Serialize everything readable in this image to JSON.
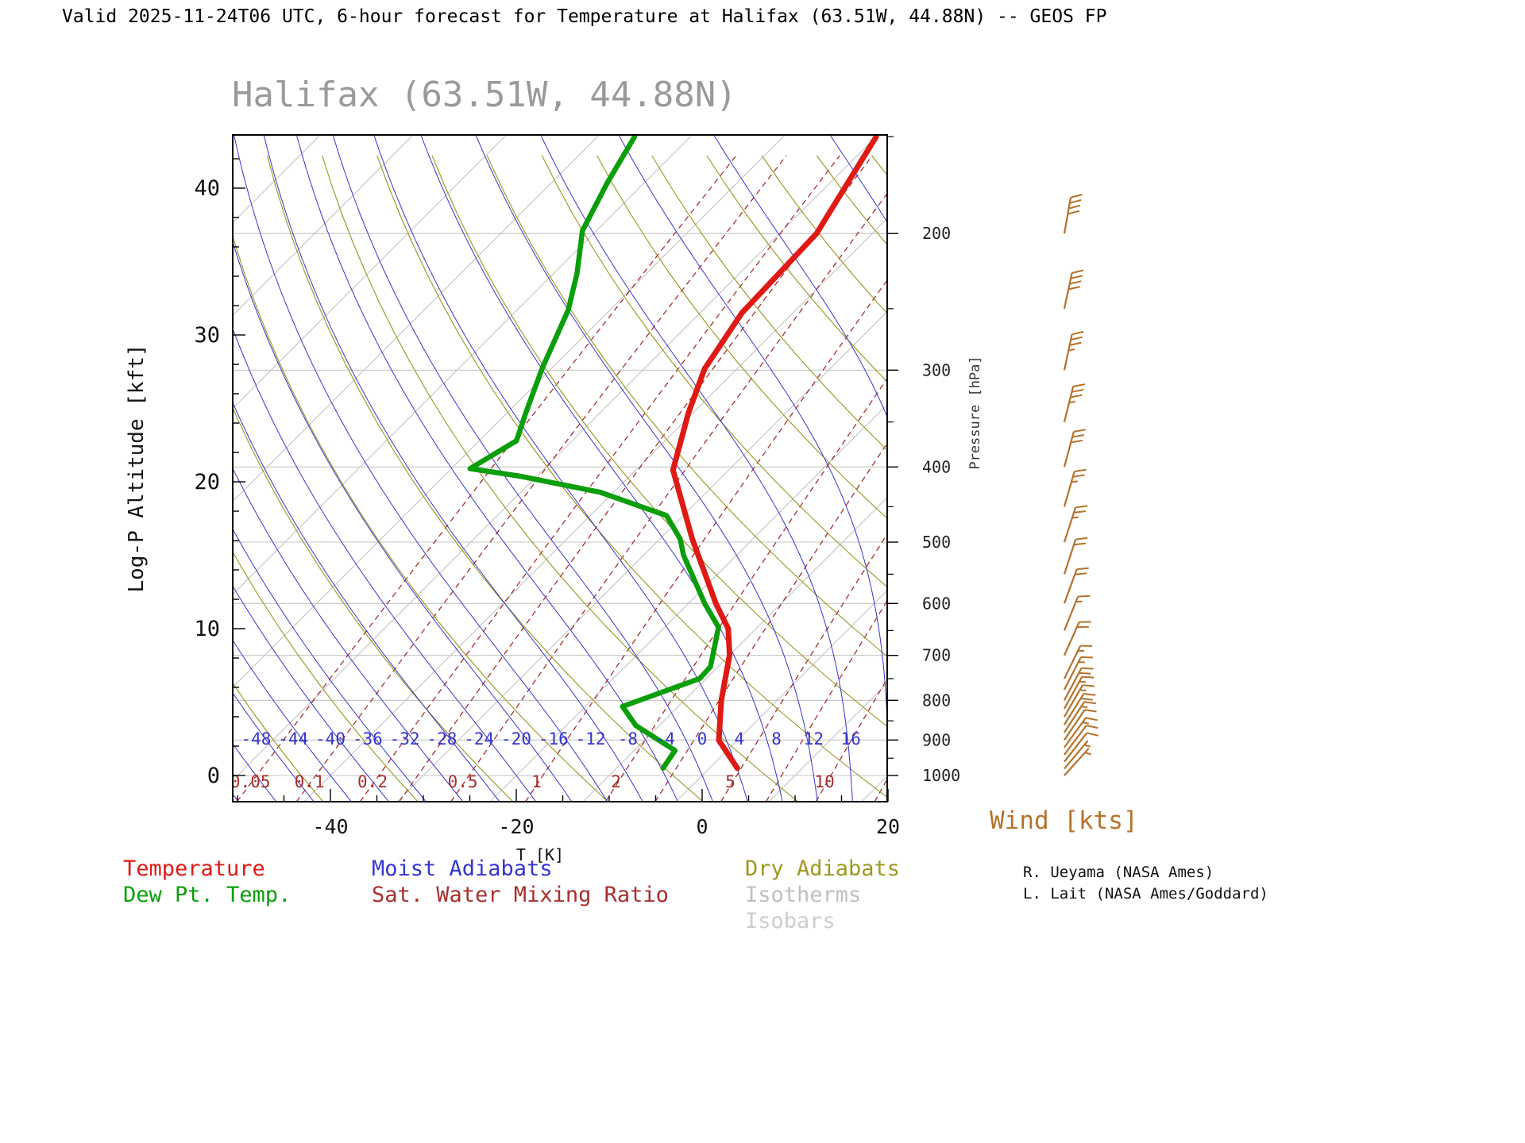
{
  "header": {
    "title": "Valid 2025-11-24T06 UTC, 6-hour forecast for Temperature at Halifax (63.51W, 44.88N) -- GEOS FP"
  },
  "chart_title": "Halifax (63.51W, 44.88N)",
  "wind_label": "Wind [kts]",
  "legend": {
    "temperature": "Temperature",
    "dewpoint": "Dew Pt. Temp.",
    "moist_adiabats": "Moist Adiabats",
    "mixing_ratio": "Sat. Water Mixing Ratio",
    "dry_adiabats": "Dry Adiabats",
    "isotherms": "Isotherms",
    "isobars": "Isobars"
  },
  "credits": {
    "line1": "R. Ueyama (NASA Ames)",
    "line2": "L. Lait (NASA Ames/Goddard)"
  },
  "chart_data": {
    "type": "skewt_log_p_sounding",
    "station": "Halifax (63.51W, 44.88N)",
    "x_axis": {
      "label": "T [K]",
      "ticks": [
        -40,
        -20,
        0,
        20
      ],
      "minor_step": 5
    },
    "y_axis": {
      "label": "Log-P Altitude [kft]",
      "ticks": [
        0,
        10,
        20,
        30,
        40
      ],
      "minor_step": 2
    },
    "pressure_axis": {
      "label": "Pressure [hPa]",
      "major_ticks": [
        200,
        300,
        400,
        500,
        600,
        700,
        800,
        900,
        1000
      ],
      "minor_ticks": [
        150,
        250,
        350,
        450,
        550,
        650,
        750,
        850,
        950
      ]
    },
    "isobars": {
      "levels": [
        200,
        300,
        400,
        500,
        600,
        700,
        800,
        900,
        1000
      ],
      "color": "#c4c4c4"
    },
    "isotherms": {
      "min": -120,
      "max": 30,
      "step": 10,
      "color": "#c4c4c4"
    },
    "dry_adiabats": {
      "theta_min": 230,
      "theta_max": 400,
      "step": 10,
      "color": "#9a941c"
    },
    "moist_adiabats": {
      "min": -64,
      "max": 40,
      "step": 4,
      "labels": [
        -48,
        -44,
        -40,
        -36,
        -32,
        -28,
        -24,
        -20,
        -16,
        -12,
        -8,
        -4,
        0,
        4,
        8,
        12,
        16
      ],
      "label_alt_kft": 2.5,
      "color": "#3535cf"
    },
    "mixing_ratio": {
      "lines_g_kg": [
        0.05,
        0.1,
        0.2,
        0.3,
        0.5,
        1,
        2,
        3,
        5,
        7,
        10,
        15,
        20
      ],
      "labels": [
        0.05,
        0.1,
        0.2,
        0.5,
        1,
        2,
        5,
        10
      ],
      "color": "#a82e2e"
    },
    "temperature_profile": {
      "name": "Temperature",
      "color": "#df1a14",
      "points_kft_c": [
        [
          0.5,
          3
        ],
        [
          2.4,
          -2
        ],
        [
          5.1,
          -6
        ],
        [
          8.2,
          -10
        ],
        [
          10,
          -13
        ],
        [
          11.7,
          -17
        ],
        [
          16.1,
          -26.5
        ],
        [
          20.8,
          -36
        ],
        [
          24.7,
          -40.5
        ],
        [
          27.7,
          -43.5
        ],
        [
          31.5,
          -45.5
        ],
        [
          36.9,
          -46
        ],
        [
          43.5,
          -50
        ]
      ]
    },
    "dewpoint_profile": {
      "name": "Dew Pt. Temp.",
      "color": "#0a9e0a",
      "points_kft_c": [
        [
          0.5,
          -5
        ],
        [
          1.7,
          -5.6
        ],
        [
          3.4,
          -12.5
        ],
        [
          4.7,
          -16
        ],
        [
          6.6,
          -10.7
        ],
        [
          7.4,
          -10.8
        ],
        [
          8.2,
          -11.8
        ],
        [
          10.1,
          -14.2
        ],
        [
          11.7,
          -18.2
        ],
        [
          15,
          -25.7
        ],
        [
          16.1,
          -27.8
        ],
        [
          17.7,
          -31.8
        ],
        [
          19.3,
          -41.5
        ],
        [
          20.4,
          -52
        ],
        [
          20.9,
          -58
        ],
        [
          22.8,
          -56
        ],
        [
          24.7,
          -58
        ],
        [
          27.7,
          -61
        ],
        [
          31.7,
          -64.5
        ],
        [
          34.2,
          -67.5
        ],
        [
          37.1,
          -71.5
        ],
        [
          40.4,
          -74
        ],
        [
          43.5,
          -76
        ]
      ]
    },
    "wind_barbs": {
      "units": "kts",
      "color": "#b5722b",
      "levels": [
        {
          "p": 200,
          "kts": 40,
          "dir": 10
        },
        {
          "p": 250,
          "kts": 40,
          "dir": 12
        },
        {
          "p": 300,
          "kts": 35,
          "dir": 12
        },
        {
          "p": 350,
          "kts": 35,
          "dir": 14
        },
        {
          "p": 400,
          "kts": 30,
          "dir": 15
        },
        {
          "p": 450,
          "kts": 25,
          "dir": 16
        },
        {
          "p": 500,
          "kts": 25,
          "dir": 18
        },
        {
          "p": 550,
          "kts": 20,
          "dir": 18
        },
        {
          "p": 600,
          "kts": 20,
          "dir": 20
        },
        {
          "p": 650,
          "kts": 15,
          "dir": 22
        },
        {
          "p": 700,
          "kts": 20,
          "dir": 24
        },
        {
          "p": 750,
          "kts": 15,
          "dir": 26
        },
        {
          "p": 775,
          "kts": 15,
          "dir": 27
        },
        {
          "p": 800,
          "kts": 20,
          "dir": 28
        },
        {
          "p": 820,
          "kts": 15,
          "dir": 29
        },
        {
          "p": 840,
          "kts": 15,
          "dir": 30
        },
        {
          "p": 860,
          "kts": 20,
          "dir": 32
        },
        {
          "p": 880,
          "kts": 15,
          "dir": 33
        },
        {
          "p": 900,
          "kts": 10,
          "dir": 34
        },
        {
          "p": 920,
          "kts": 15,
          "dir": 36
        },
        {
          "p": 940,
          "kts": 10,
          "dir": 37
        },
        {
          "p": 960,
          "kts": 10,
          "dir": 38
        },
        {
          "p": 980,
          "kts": 5,
          "dir": 40
        },
        {
          "p": 1000,
          "kts": 5,
          "dir": 42
        }
      ]
    }
  }
}
